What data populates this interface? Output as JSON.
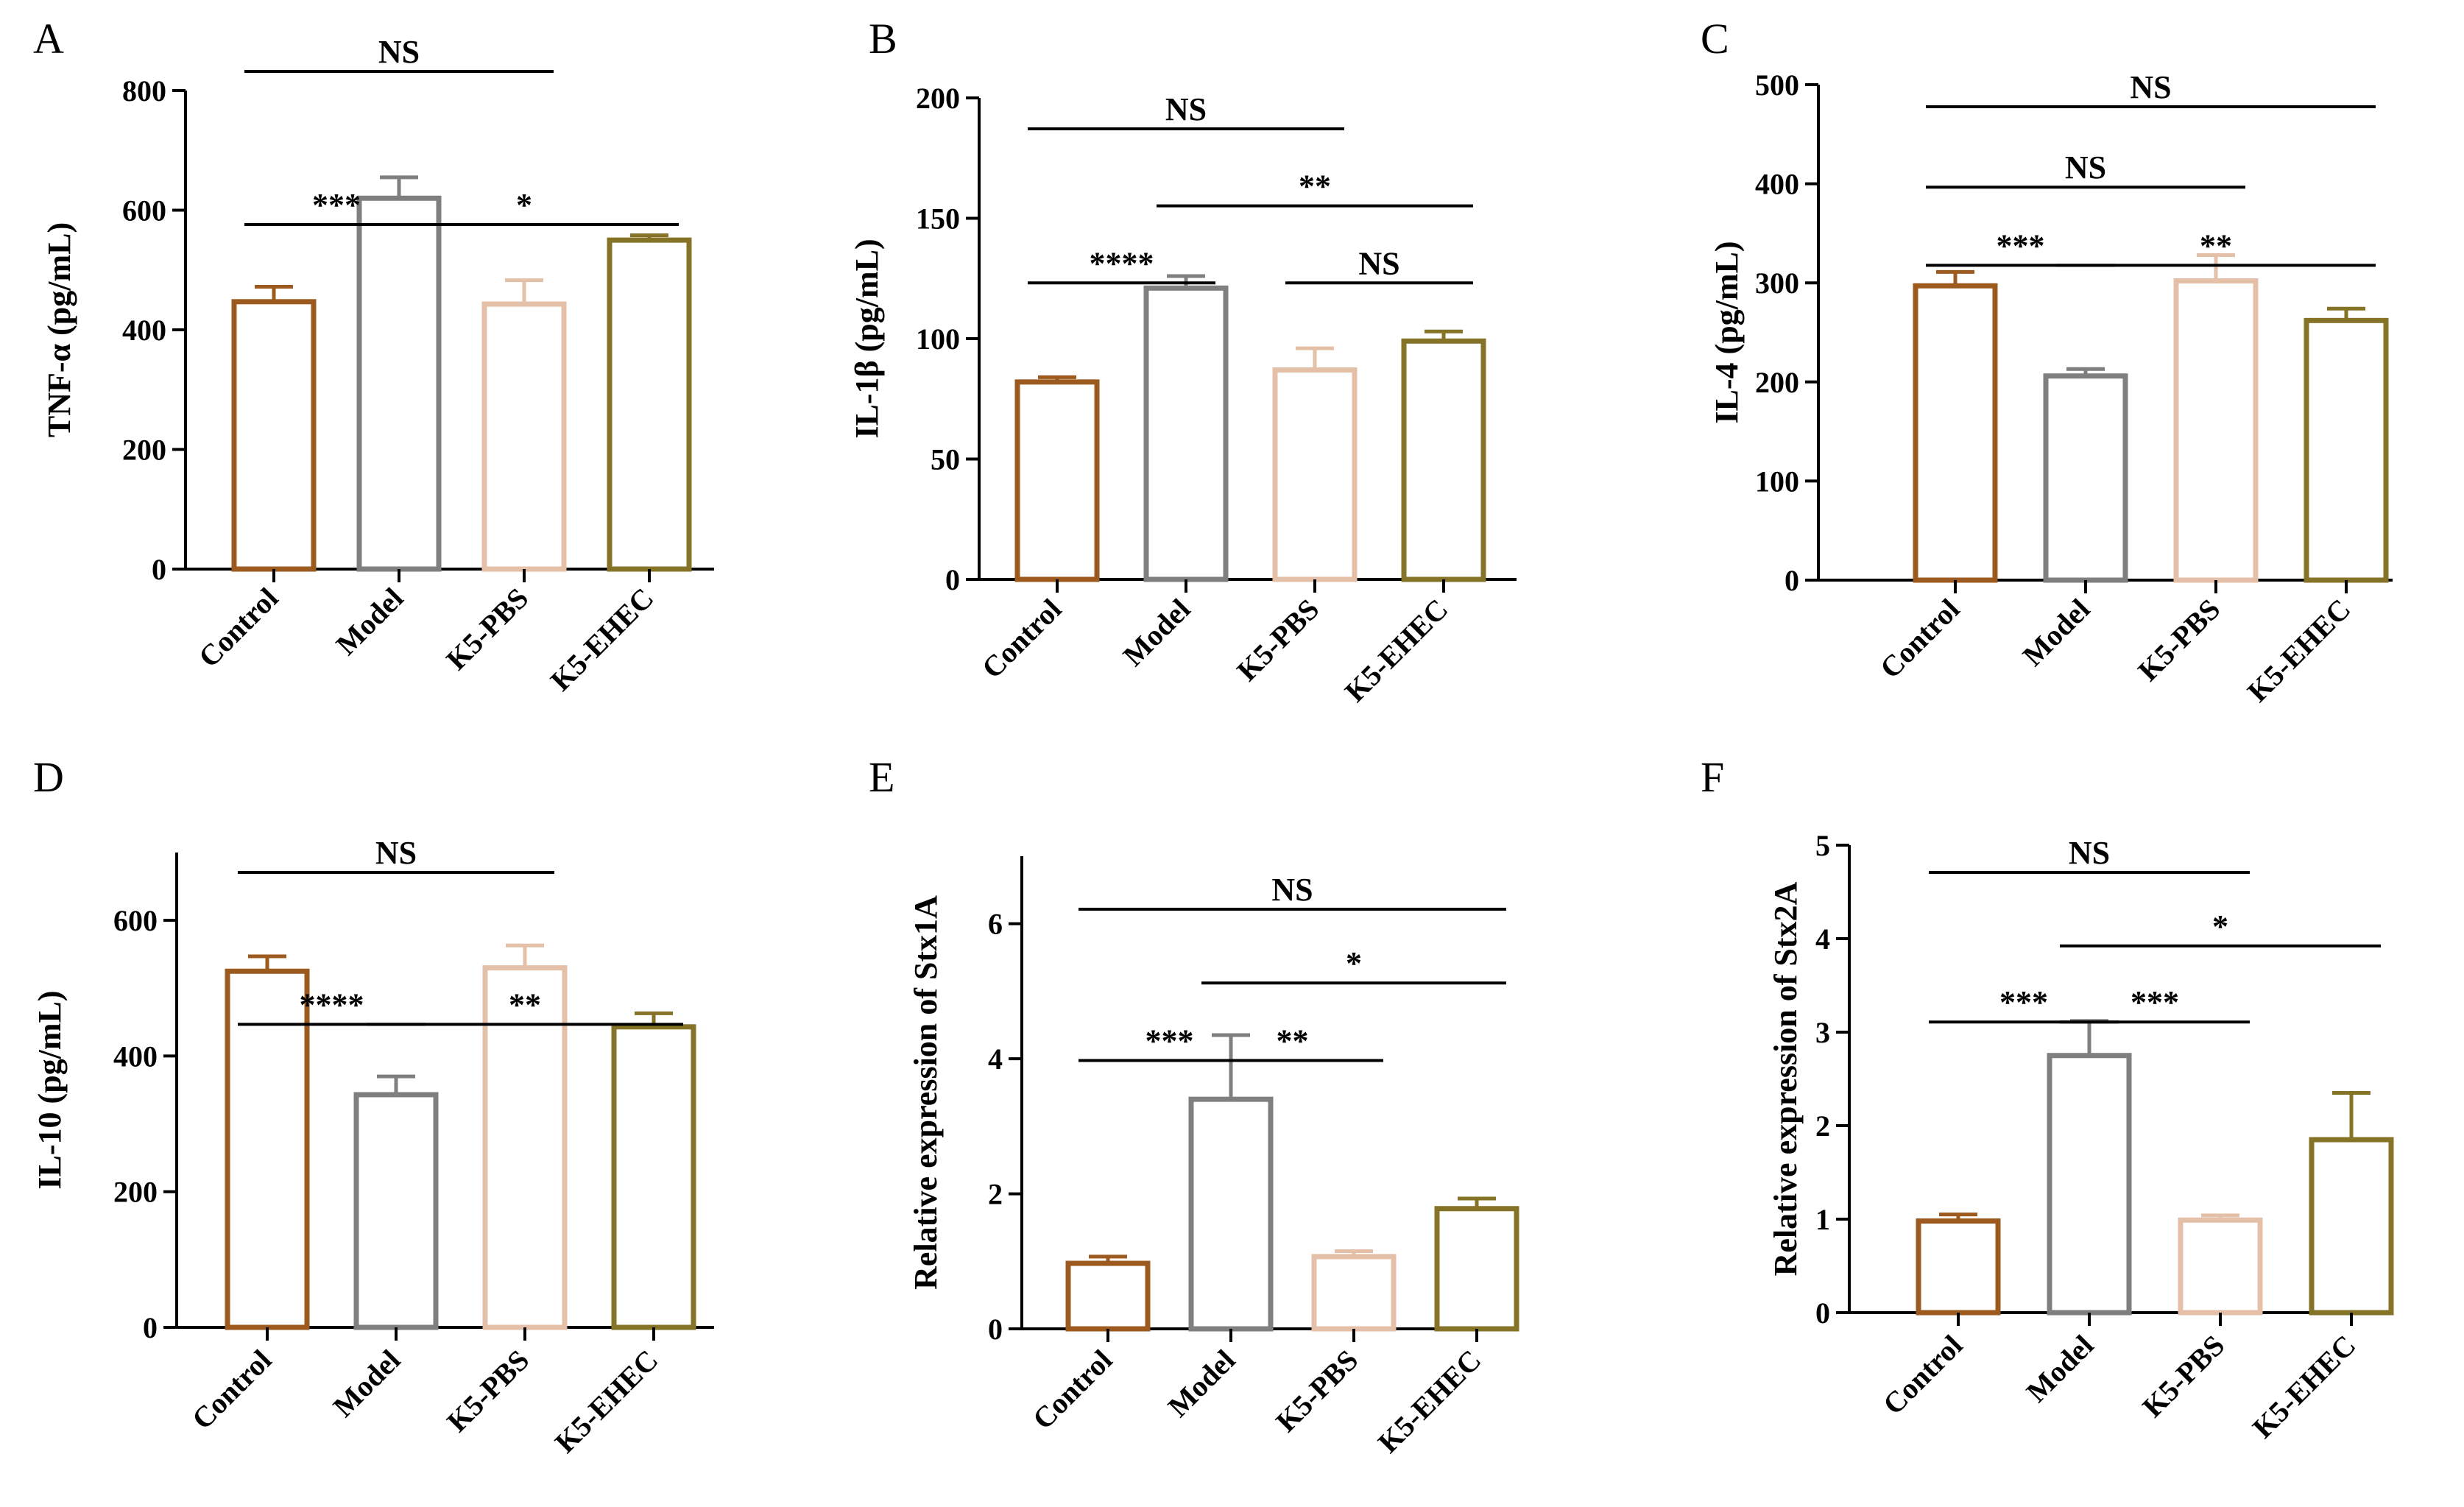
{
  "colors": {
    "Control": "#9c5a1e",
    "Model": "#7f7f7f",
    "K5-PBS": "#e3c0a7",
    "K5-EHEC": "#857327",
    "axis": "#000000"
  },
  "chart_data": [
    {
      "type": "bar",
      "panel": "A",
      "ylabel": "TNF-α (pg/mL)",
      "categories": [
        "Control",
        "Model",
        "K5-PBS",
        "K5-EHEC"
      ],
      "values": [
        447,
        620,
        443,
        550
      ],
      "errors": [
        25,
        35,
        40,
        8
      ],
      "ylim": [
        0,
        800
      ],
      "yticks": [
        0,
        200,
        400,
        600,
        800
      ],
      "significance": [
        {
          "from": 0,
          "to": 2,
          "label": "NS",
          "level": 3.4
        },
        {
          "from": 0,
          "to": 1,
          "label": "***",
          "level": 2.35
        },
        {
          "from": 1,
          "to": 3,
          "label": "*",
          "level": 2.35
        }
      ]
    },
    {
      "type": "bar",
      "panel": "B",
      "ylabel": "IL-1β (pg/mL)",
      "categories": [
        "Control",
        "Model",
        "K5-PBS",
        "K5-EHEC"
      ],
      "values": [
        82,
        121,
        87,
        99
      ],
      "errors": [
        2,
        5,
        9,
        4
      ],
      "ylim": [
        0,
        200
      ],
      "yticks": [
        0,
        50,
        100,
        150,
        200
      ],
      "significance": [
        {
          "from": 0,
          "to": 2,
          "label": "NS",
          "level": 4.05
        },
        {
          "from": 1,
          "to": 3,
          "label": "**",
          "level": 3.0
        },
        {
          "from": 0,
          "to": 1,
          "label": "****",
          "level": 1.95
        },
        {
          "from": 2,
          "to": 3,
          "label": "NS",
          "level": 1.95
        }
      ]
    },
    {
      "type": "bar",
      "panel": "C",
      "ylabel": "IL-4 (pg/mL)",
      "categories": [
        "Control",
        "Model",
        "K5-PBS",
        "K5-EHEC"
      ],
      "values": [
        297,
        206,
        302,
        262
      ],
      "errors": [
        14,
        7,
        26,
        12
      ],
      "ylim": [
        0,
        500
      ],
      "yticks": [
        0,
        100,
        200,
        300,
        400,
        500
      ],
      "significance": [
        {
          "from": 0,
          "to": 3,
          "label": "NS",
          "level": 4.9
        },
        {
          "from": 0,
          "to": 2,
          "label": "NS",
          "level": 3.15
        },
        {
          "from": 0,
          "to": 1,
          "label": "***",
          "level": 1.45
        },
        {
          "from": 1,
          "to": 3,
          "label": "**",
          "level": 1.45
        }
      ]
    },
    {
      "type": "bar",
      "panel": "D",
      "ylabel": "IL-10 (pg/mL)",
      "categories": [
        "Control",
        "Model",
        "K5-PBS",
        "K5-EHEC"
      ],
      "values": [
        525,
        343,
        530,
        443
      ],
      "errors": [
        22,
        27,
        33,
        20
      ],
      "ylim": [
        0,
        700
      ],
      "yticks": [
        0,
        200,
        400,
        600
      ],
      "significance": [
        {
          "from": 0,
          "to": 2,
          "label": "NS",
          "level": 3.15
        },
        {
          "from": 0,
          "to": 1,
          "label": "****",
          "level": 1.8
        },
        {
          "from": 1,
          "to": 3,
          "label": "**",
          "level": 1.8
        }
      ]
    },
    {
      "type": "bar",
      "panel": "E",
      "ylabel": "Relative expression of Stx1A",
      "categories": [
        "Control",
        "Model",
        "K5-PBS",
        "K5-EHEC"
      ],
      "values": [
        0.97,
        3.4,
        1.07,
        1.78
      ],
      "errors": [
        0.1,
        0.95,
        0.08,
        0.15
      ],
      "ylim": [
        0,
        7
      ],
      "yticks": [
        0,
        2,
        4,
        6
      ],
      "significance": [
        {
          "from": 0,
          "to": 3,
          "label": "NS",
          "level": 4.0
        },
        {
          "from": 1,
          "to": 3,
          "label": "*",
          "level": 3.0
        },
        {
          "from": 0,
          "to": 1,
          "label": "***",
          "level": 1.95
        },
        {
          "from": 1,
          "to": 2,
          "label": "**",
          "level": 1.95
        }
      ]
    },
    {
      "type": "bar",
      "panel": "F",
      "ylabel": "Relative expression of Stx2A",
      "categories": [
        "Control",
        "Model",
        "K5-PBS",
        "K5-EHEC"
      ],
      "values": [
        0.98,
        2.75,
        0.99,
        1.85
      ],
      "errors": [
        0.07,
        0.37,
        0.05,
        0.5
      ],
      "ylim": [
        0,
        5
      ],
      "yticks": [
        0,
        1,
        2,
        3,
        4,
        5
      ],
      "significance": [
        {
          "from": 0,
          "to": 2,
          "label": "NS",
          "level": 4.95
        },
        {
          "from": 1,
          "to": 3,
          "label": "*",
          "level": 3.55
        },
        {
          "from": 0,
          "to": 1,
          "label": "***",
          "level": 2.1
        },
        {
          "from": 1,
          "to": 2,
          "label": "***",
          "level": 2.1
        }
      ]
    }
  ]
}
